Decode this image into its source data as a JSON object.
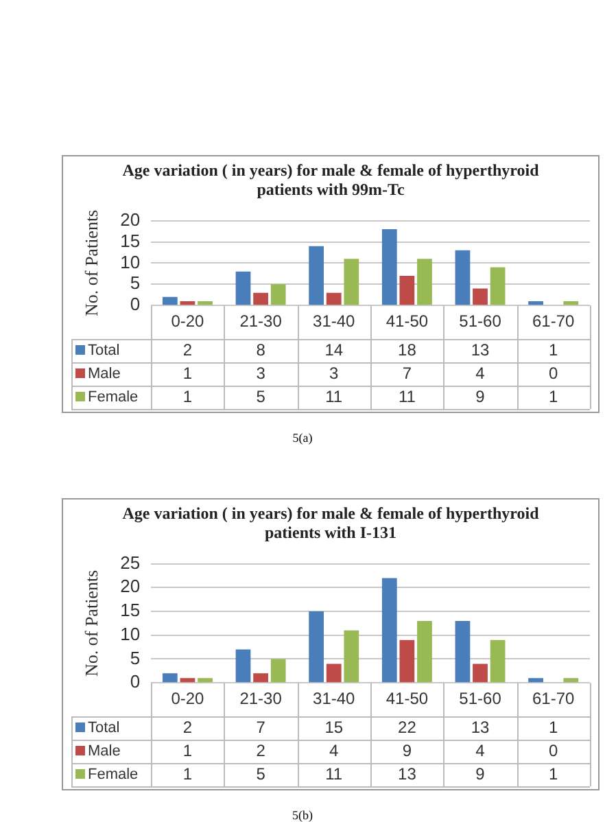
{
  "chart_data": [
    {
      "type": "bar",
      "title": "Age variation ( in years) for male & female of hyperthyroid patients with 99m-Tc",
      "ylabel": "No. of Patients",
      "categories": [
        "0-20",
        "21-30",
        "31-40",
        "41-50",
        "51-60",
        "61-70"
      ],
      "series": [
        {
          "name": "Total",
          "color": "#4a7ebb",
          "values": [
            2,
            8,
            14,
            18,
            13,
            1
          ]
        },
        {
          "name": "Male",
          "color": "#be4b48",
          "values": [
            1,
            3,
            3,
            7,
            4,
            0
          ]
        },
        {
          "name": "Female",
          "color": "#98b954",
          "values": [
            1,
            5,
            11,
            11,
            9,
            1
          ]
        }
      ],
      "ylim": [
        0,
        20
      ],
      "yticks": [
        0,
        5,
        10,
        15,
        20
      ],
      "grid": "y",
      "legend": "bottom left",
      "data_labels": true,
      "annotations": [
        "5(a)"
      ]
    },
    {
      "type": "bar",
      "title": "Age variation ( in years) for male & female of hyperthyroid patients with  I-131",
      "ylabel": "No. of Patients",
      "categories": [
        "0-20",
        "21-30",
        "31-40",
        "41-50",
        "51-60",
        "61-70"
      ],
      "series": [
        {
          "name": "Total",
          "color": "#4a7ebb",
          "values": [
            2,
            7,
            15,
            22,
            13,
            1
          ]
        },
        {
          "name": "Male",
          "color": "#be4b48",
          "values": [
            1,
            2,
            4,
            9,
            4,
            0
          ]
        },
        {
          "name": "Female",
          "color": "#98b954",
          "values": [
            1,
            5,
            11,
            13,
            9,
            1
          ]
        }
      ],
      "ylim": [
        0,
        25
      ],
      "yticks": [
        0,
        5,
        10,
        15,
        20,
        25
      ],
      "grid": "y",
      "legend": "bottom left",
      "data_labels": true,
      "annotations": [
        "5(b)"
      ]
    }
  ]
}
